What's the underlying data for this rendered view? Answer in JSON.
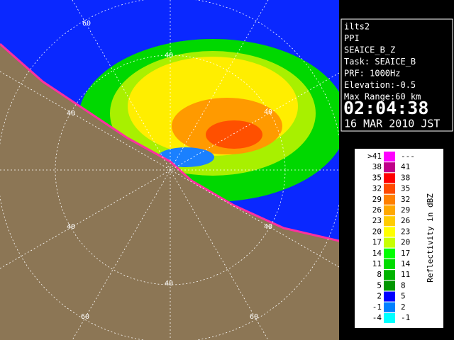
{
  "info": {
    "lines": [
      "ilts2",
      "PPI",
      "SEAICE_B_Z",
      "Task: SEAICE_B",
      "PRF: 1000Hz",
      "Elevation:-0.5",
      "Max Range:60 km"
    ],
    "time": "02:04:38",
    "date": "16 MAR 2010 JST"
  },
  "legend": {
    "title": "Reflectivity in dBZ",
    "rows": [
      {
        "low": ">41",
        "high": "---",
        "color": "#ff00ff"
      },
      {
        "low": "38",
        "high": "41",
        "color": "#c0008a"
      },
      {
        "low": "35",
        "high": "38",
        "color": "#ff0000"
      },
      {
        "low": "32",
        "high": "35",
        "color": "#ff4a00"
      },
      {
        "low": "29",
        "high": "32",
        "color": "#ff8000"
      },
      {
        "low": "26",
        "high": "29",
        "color": "#ffa800"
      },
      {
        "low": "23",
        "high": "26",
        "color": "#ffcc00"
      },
      {
        "low": "20",
        "high": "23",
        "color": "#ffff00"
      },
      {
        "low": "17",
        "high": "20",
        "color": "#c8ff00"
      },
      {
        "low": "14",
        "high": "17",
        "color": "#00ff00"
      },
      {
        "low": "11",
        "high": "14",
        "color": "#00dc00"
      },
      {
        "low": "8",
        "high": "11",
        "color": "#00b400"
      },
      {
        "low": "5",
        "high": "8",
        "color": "#009600"
      },
      {
        "low": "2",
        "high": "5",
        "color": "#0000ff"
      },
      {
        "low": "-1",
        "high": "2",
        "color": "#0080ff"
      },
      {
        "low": "-4",
        "high": "-1",
        "color": "#00ffff"
      }
    ]
  },
  "range_labels": [
    "60",
    "40",
    "40",
    "40",
    "40",
    "40",
    "40",
    "60",
    "60"
  ]
}
